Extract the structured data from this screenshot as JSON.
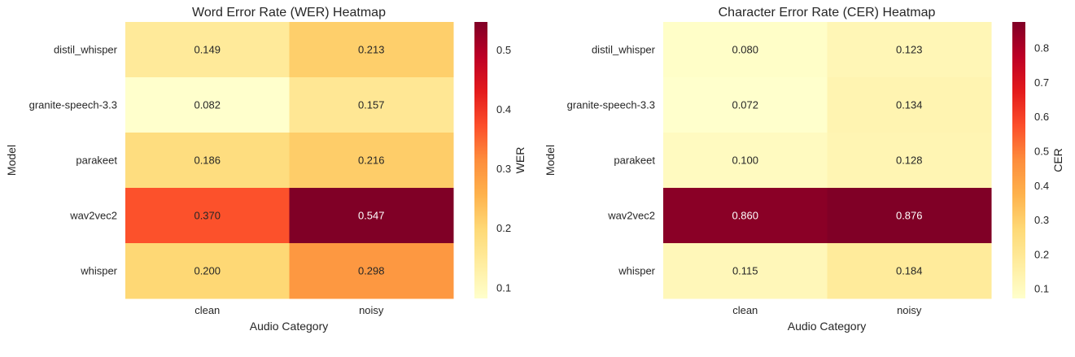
{
  "chart_data": [
    {
      "type": "heatmap",
      "title": "Word Error Rate (WER) Heatmap",
      "xlabel": "Audio Category",
      "ylabel": "Model",
      "x_categories": [
        "clean",
        "noisy"
      ],
      "y_categories": [
        "distil_whisper",
        "granite-speech-3.3",
        "parakeet",
        "wav2vec2",
        "whisper"
      ],
      "values": [
        [
          0.149,
          0.213
        ],
        [
          0.082,
          0.157
        ],
        [
          0.186,
          0.216
        ],
        [
          0.37,
          0.547
        ],
        [
          0.2,
          0.298
        ]
      ],
      "value_labels": [
        [
          "0.149",
          "0.213"
        ],
        [
          "0.082",
          "0.157"
        ],
        [
          "0.186",
          "0.216"
        ],
        [
          "0.370",
          "0.547"
        ],
        [
          "0.200",
          "0.298"
        ]
      ],
      "colorbar": {
        "label": "WER",
        "range": [
          0.082,
          0.547
        ],
        "ticks": [
          0.1,
          0.2,
          0.3,
          0.4,
          0.5
        ],
        "tick_labels": [
          "0.1",
          "0.2",
          "0.3",
          "0.4",
          "0.5"
        ]
      },
      "colormap": "YlOrRd",
      "grid": false
    },
    {
      "type": "heatmap",
      "title": "Character Error Rate (CER) Heatmap",
      "xlabel": "Audio Category",
      "ylabel": "Model",
      "x_categories": [
        "clean",
        "noisy"
      ],
      "y_categories": [
        "distil_whisper",
        "granite-speech-3.3",
        "parakeet",
        "wav2vec2",
        "whisper"
      ],
      "values": [
        [
          0.08,
          0.123
        ],
        [
          0.072,
          0.134
        ],
        [
          0.1,
          0.128
        ],
        [
          0.86,
          0.876
        ],
        [
          0.115,
          0.184
        ]
      ],
      "value_labels": [
        [
          "0.080",
          "0.123"
        ],
        [
          "0.072",
          "0.134"
        ],
        [
          "0.100",
          "0.128"
        ],
        [
          "0.860",
          "0.876"
        ],
        [
          "0.115",
          "0.184"
        ]
      ],
      "colorbar": {
        "label": "CER",
        "range": [
          0.072,
          0.876
        ],
        "ticks": [
          0.1,
          0.2,
          0.3,
          0.4,
          0.5,
          0.6,
          0.7,
          0.8
        ],
        "tick_labels": [
          "0.1",
          "0.2",
          "0.3",
          "0.4",
          "0.5",
          "0.6",
          "0.7",
          "0.8"
        ]
      },
      "colormap": "YlOrRd",
      "grid": false
    }
  ],
  "colormap_stops": [
    "#ffffcc",
    "#ffeda0",
    "#fed976",
    "#feb24c",
    "#fd8d3c",
    "#fc4e2a",
    "#e31a1c",
    "#bd0026",
    "#800026"
  ]
}
